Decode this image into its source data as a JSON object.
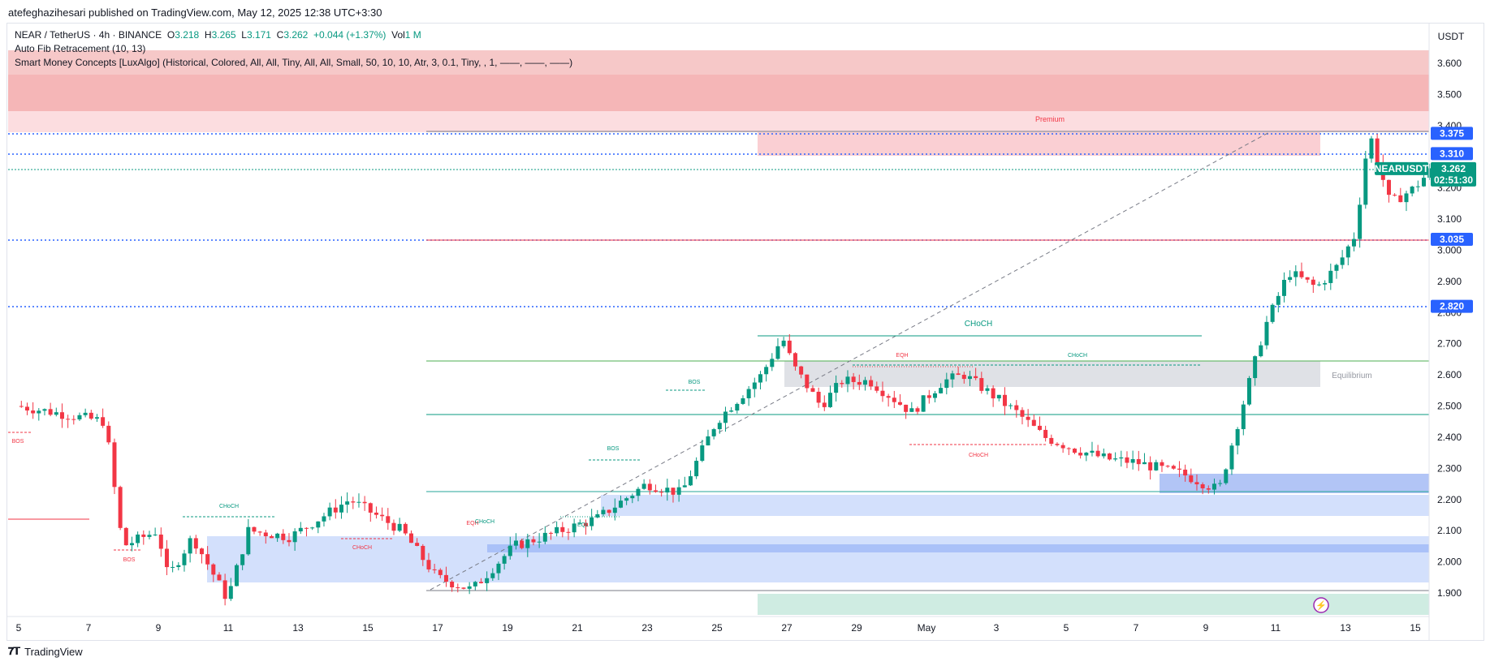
{
  "publisher": "atefeghazihesari published on TradingView.com, May 12, 2025 12:38 UTC+3:30",
  "legend": {
    "symbol": "NEAR / TetherUS · 4h · BINANCE",
    "o_label": "O",
    "o": "3.218",
    "h_label": "H",
    "h": "3.265",
    "l_label": "L",
    "l": "3.171",
    "c_label": "C",
    "c": "3.262",
    "change": "+0.044 (+1.37%)",
    "vol_label": "Vol",
    "vol": "1 M",
    "indicator1": "Auto Fib Retracement (10, 13)",
    "indicator2": "Smart Money Concepts [LuxAlgo] (Historical, Colored, All, All, Tiny, All, All, Small, 50, 10, 10, Atr, 3, 0.1, Tiny, , 1, ——, ——, ——)"
  },
  "footer": {
    "brand": "TradingView"
  },
  "colors": {
    "up": "#089981",
    "down": "#f23645",
    "blue": "#2962ff",
    "premium": "#f23645",
    "discount": "#2962ff",
    "equilibrium": "#9598a1",
    "fib_green": "#4caf50",
    "fib_red": "#f23645"
  },
  "chart_data": {
    "type": "candlestick",
    "currency": "USDT",
    "ylim": [
      1.83,
      3.66
    ],
    "y_ticks": [
      "3.600",
      "3.500",
      "3.400",
      "3.300",
      "3.200",
      "3.100",
      "3.000",
      "2.900",
      "2.800",
      "2.700",
      "2.600",
      "2.500",
      "2.400",
      "2.300",
      "2.200",
      "2.100",
      "2.000",
      "1.900"
    ],
    "x_ticks": [
      "5",
      "7",
      "9",
      "11",
      "13",
      "15",
      "17",
      "19",
      "21",
      "23",
      "25",
      "27",
      "29",
      "May",
      "3",
      "5",
      "7",
      "9",
      "11",
      "13",
      "15"
    ],
    "last_price": {
      "label": "NEARUSDT",
      "value": "3.262",
      "countdown": "02:51:30"
    },
    "price_tags": [
      {
        "value": "3.375",
        "y": 3.375
      },
      {
        "value": "3.310",
        "y": 3.31
      },
      {
        "value": "3.035",
        "y": 3.035
      },
      {
        "value": "2.820",
        "y": 2.82
      }
    ],
    "annotations": [
      {
        "text": "Premium",
        "kind": "premium"
      },
      {
        "text": "Equilibrium",
        "kind": "equilibrium"
      },
      {
        "text": "CHoCH",
        "kind": "choch-major"
      },
      {
        "text": "EQH",
        "kind": "eqh"
      },
      {
        "text": "CHoCH",
        "kind": "choch-up"
      },
      {
        "text": "CHoCH",
        "kind": "choch-down"
      },
      {
        "text": "BOS",
        "kind": "bos-up-1"
      },
      {
        "text": "BOS",
        "kind": "bos-up-2"
      },
      {
        "text": "EQL",
        "kind": "eql"
      },
      {
        "text": "EQH",
        "kind": "eqh-2"
      },
      {
        "text": "CHoCH",
        "kind": "choch-up-2"
      },
      {
        "text": "CHoCH",
        "kind": "choch-up-3"
      },
      {
        "text": "CHoCH",
        "kind": "choch-down-2"
      },
      {
        "text": "BOS",
        "kind": "bos-down-1"
      },
      {
        "text": "BOS",
        "kind": "bos-down-2"
      }
    ],
    "key_points": [
      {
        "date": "Apr 5",
        "price": 2.5
      },
      {
        "date": "Apr 9",
        "price": 1.88
      },
      {
        "date": "Apr 12",
        "price": 2.23
      },
      {
        "date": "Apr 16",
        "price": 1.91
      },
      {
        "date": "Apr 22",
        "price": 2.17
      },
      {
        "date": "Apr 25",
        "price": 2.73
      },
      {
        "date": "Apr 28",
        "price": 2.44
      },
      {
        "date": "May 1",
        "price": 2.63
      },
      {
        "date": "May 7",
        "price": 2.23
      },
      {
        "date": "May 9",
        "price": 2.78
      },
      {
        "date": "May 11",
        "price": 3.38
      },
      {
        "date": "May 12",
        "price": 3.262
      }
    ]
  }
}
